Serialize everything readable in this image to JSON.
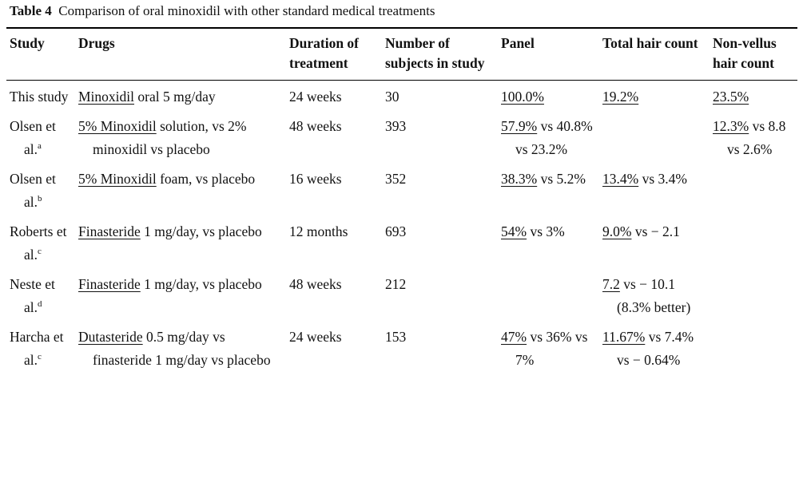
{
  "table": {
    "caption_label": "Table 4",
    "caption": "Comparison of oral minoxidil with other standard medical treatments",
    "header": [
      "Study",
      "Drugs",
      "Duration of treatment",
      "Number of subjects in study",
      "Panel",
      "Total hair count",
      "Non-vellus hair count"
    ],
    "rows": [
      {
        "study": {
          "name": "This study"
        },
        "cells": [
          [
            {
              "text": "Minoxidil",
              "underline": true
            },
            {
              "text": " oral 5 mg/day"
            }
          ],
          [
            {
              "text": "24 weeks"
            }
          ],
          [
            {
              "text": "30"
            }
          ],
          [
            {
              "text": "100.0%",
              "underline": true
            }
          ],
          [
            {
              "text": "19.2%",
              "underline": true
            }
          ],
          [
            {
              "text": "23.5%",
              "underline": true
            }
          ]
        ]
      },
      {
        "study": {
          "name": "Olsen et al.",
          "note": "a"
        },
        "cells": [
          [
            {
              "text": "5% Minoxidil",
              "underline": true
            },
            {
              "text": " solution, vs 2% minoxidil vs placebo"
            }
          ],
          [
            {
              "text": "48 weeks"
            }
          ],
          [
            {
              "text": "393"
            }
          ],
          [
            {
              "text": "57.9%",
              "underline": true
            },
            {
              "text": " vs 40.8% vs 23.2%"
            }
          ],
          null,
          [
            {
              "text": "12.3%",
              "underline": true
            },
            {
              "text": " vs 8.8 vs 2.6%"
            }
          ]
        ]
      },
      {
        "study": {
          "name": "Olsen et al.",
          "note": "b"
        },
        "cells": [
          [
            {
              "text": "5% Minoxidil",
              "underline": true
            },
            {
              "text": " foam, vs placebo"
            }
          ],
          [
            {
              "text": "16 weeks"
            }
          ],
          [
            {
              "text": "352"
            }
          ],
          [
            {
              "text": "38.3%",
              "underline": true
            },
            {
              "text": " vs 5.2%"
            }
          ],
          [
            {
              "text": "13.4%",
              "underline": true
            },
            {
              "text": " vs 3.4%"
            }
          ],
          null
        ]
      },
      {
        "study": {
          "name": "Roberts et al.",
          "note": "c"
        },
        "cells": [
          [
            {
              "text": "Finasteride",
              "underline": true
            },
            {
              "text": " 1 mg/day, vs placebo"
            }
          ],
          [
            {
              "text": "12 months"
            }
          ],
          [
            {
              "text": "693"
            }
          ],
          [
            {
              "text": "54%",
              "underline": true
            },
            {
              "text": " vs 3%"
            }
          ],
          [
            {
              "text": "9.0%",
              "underline": true
            },
            {
              "text": " vs − 2.1"
            }
          ],
          null
        ]
      },
      {
        "study": {
          "name": "Neste et al.",
          "note": "d"
        },
        "cells": [
          [
            {
              "text": "Finasteride",
              "underline": true
            },
            {
              "text": " 1 mg/day, vs placebo"
            }
          ],
          [
            {
              "text": "48 weeks"
            }
          ],
          [
            {
              "text": "212"
            }
          ],
          null,
          [
            {
              "text": "7.2",
              "underline": true
            },
            {
              "text": " vs − 10.1 (8.3% better)"
            }
          ],
          null
        ]
      },
      {
        "study": {
          "name": "Harcha et al.",
          "note": "c"
        },
        "cells": [
          [
            {
              "text": "Dutasteride",
              "underline": true
            },
            {
              "text": " 0.5 mg/day vs finasteride 1 mg/day vs placebo"
            }
          ],
          [
            {
              "text": "24 weeks"
            }
          ],
          [
            {
              "text": "153"
            }
          ],
          [
            {
              "text": "47%",
              "underline": true
            },
            {
              "text": " vs 36% vs 7%"
            }
          ],
          [
            {
              "text": "11.67%",
              "underline": true
            },
            {
              "text": " vs 7.4% vs − 0.64%"
            }
          ],
          null
        ]
      }
    ]
  }
}
